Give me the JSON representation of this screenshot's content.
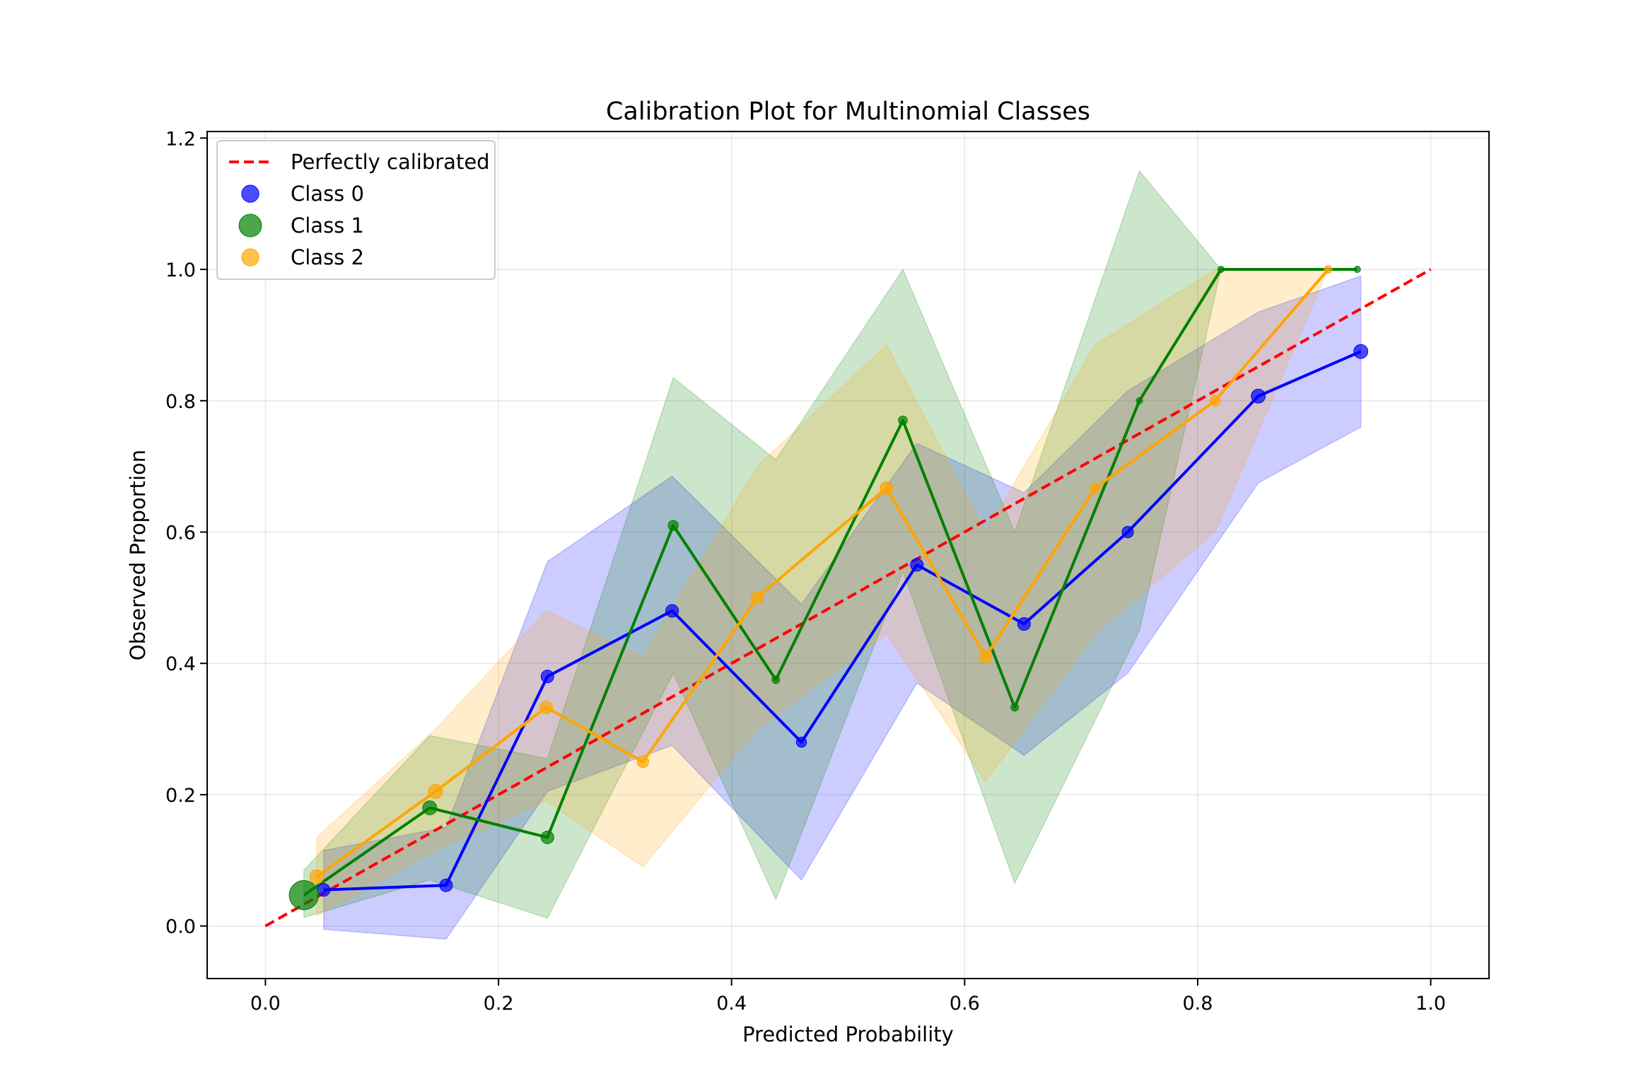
{
  "chart_data": {
    "type": "line",
    "title": "Calibration Plot for Multinomial Classes",
    "xlabel": "Predicted Probability",
    "ylabel": "Observed Proportion",
    "xlim": [
      -0.05,
      1.05
    ],
    "ylim": [
      -0.08,
      1.21
    ],
    "xticks": [
      0.0,
      0.2,
      0.4,
      0.6,
      0.8,
      1.0
    ],
    "xtick_labels": [
      "0.0",
      "0.2",
      "0.4",
      "0.6",
      "0.8",
      "1.0"
    ],
    "yticks": [
      0.0,
      0.2,
      0.4,
      0.6,
      0.8,
      1.0,
      1.2
    ],
    "ytick_labels": [
      "0.0",
      "0.2",
      "0.4",
      "0.6",
      "0.8",
      "1.0",
      "1.2"
    ],
    "grid": true,
    "legend_position": "top-left",
    "reference_line": {
      "name": "Perfectly calibrated",
      "x": [
        0,
        1
      ],
      "y": [
        0,
        1
      ],
      "color": "#ff0000"
    },
    "series": [
      {
        "name": "Class 0",
        "color": "#0000ff",
        "x": [
          0.05,
          0.155,
          0.242,
          0.349,
          0.46,
          0.559,
          0.651,
          0.74,
          0.852,
          0.94
        ],
        "y": [
          0.055,
          0.062,
          0.38,
          0.48,
          0.28,
          0.55,
          0.46,
          0.6,
          0.807,
          0.875
        ],
        "lower": [
          -0.005,
          -0.02,
          0.205,
          0.275,
          0.07,
          0.37,
          0.26,
          0.385,
          0.675,
          0.76
        ],
        "upper": [
          0.115,
          0.15,
          0.555,
          0.685,
          0.49,
          0.735,
          0.66,
          0.815,
          0.935,
          0.99
        ],
        "sizes": [
          1,
          1,
          1,
          1,
          0.8,
          1,
          1,
          0.9,
          1.1,
          1.1
        ]
      },
      {
        "name": "Class 1",
        "color": "#008000",
        "x": [
          0.033,
          0.141,
          0.242,
          0.35,
          0.438,
          0.547,
          0.643,
          0.75,
          0.82,
          0.937
        ],
        "y": [
          0.047,
          0.18,
          0.135,
          0.61,
          0.375,
          0.77,
          0.333,
          0.8,
          1.0,
          1.0
        ],
        "lower": [
          0.013,
          0.07,
          0.012,
          0.385,
          0.04,
          0.54,
          0.065,
          0.45,
          1.0,
          1.0
        ],
        "upper": [
          0.085,
          0.29,
          0.255,
          0.835,
          0.71,
          1.0,
          0.6,
          1.15,
          1.0,
          1.0
        ],
        "sizes": [
          2.3,
          1.1,
          1.0,
          0.8,
          0.6,
          0.7,
          0.6,
          0.5,
          0.5,
          0.5
        ]
      },
      {
        "name": "Class 2",
        "color": "#ffa500",
        "x": [
          0.044,
          0.146,
          0.241,
          0.324,
          0.422,
          0.533,
          0.618,
          0.712,
          0.815,
          0.912
        ],
        "y": [
          0.075,
          0.205,
          0.333,
          0.25,
          0.5,
          0.667,
          0.41,
          0.667,
          0.8,
          1.0
        ],
        "lower": [
          0.015,
          0.115,
          0.19,
          0.09,
          0.3,
          0.445,
          0.22,
          0.445,
          0.6,
          1.0
        ],
        "upper": [
          0.135,
          0.3,
          0.48,
          0.41,
          0.7,
          0.885,
          0.6,
          0.885,
          1.0,
          1.0
        ],
        "sizes": [
          1.1,
          1.1,
          1.0,
          0.9,
          1.0,
          1.0,
          1.0,
          0.8,
          0.8,
          0.6
        ]
      }
    ]
  }
}
